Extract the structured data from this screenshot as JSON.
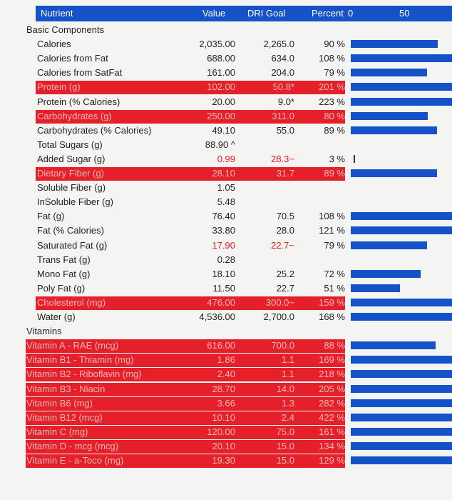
{
  "header": {
    "nutrient": "Nutrient",
    "value": "Value",
    "dri_goal": "DRI Goal",
    "percent": "Percent",
    "scale_0": "0",
    "scale_50": "50"
  },
  "colors": {
    "header_blue": "#1552c8",
    "highlight_red": "#e5202a",
    "bar_blue": "#1552c8"
  },
  "rows": [
    {
      "name": "Basic Components",
      "value": "",
      "dri": "",
      "pct": "",
      "style": "section",
      "bar": 0
    },
    {
      "name": "Calories",
      "value": "2,035.00",
      "dri": "2,265.0",
      "pct": "90 %",
      "style": "normal",
      "bar": 90
    },
    {
      "name": "Calories from Fat",
      "value": "688.00",
      "dri": "634.0",
      "pct": "108 %",
      "style": "normal",
      "bar": 108
    },
    {
      "name": "Calories from SatFat",
      "value": "161.00",
      "dri": "204.0",
      "pct": "79 %",
      "style": "normal",
      "bar": 79
    },
    {
      "name": "Protein (g)",
      "value": "102.00",
      "dri": "50.8*",
      "pct": "201 %",
      "style": "red",
      "bar": 201
    },
    {
      "name": "Protein (% Calories)",
      "value": "20.00",
      "dri": "9.0*",
      "pct": "223 %",
      "style": "normal",
      "bar": 223
    },
    {
      "name": "Carbohydrates (g)",
      "value": "250.00",
      "dri": "311.0",
      "pct": "80 %",
      "style": "red",
      "bar": 80
    },
    {
      "name": "Carbohydrates (% Calories)",
      "value": "49.10",
      "dri": "55.0",
      "pct": "89 %",
      "style": "normal",
      "bar": 89
    },
    {
      "name": "Total Sugars (g)",
      "value": "88.90 ^",
      "dri": "",
      "pct": "",
      "style": "normal",
      "bar": 0
    },
    {
      "name": "Added Sugar (g)",
      "value": "0.99",
      "dri": "28.3~",
      "pct": "3 %",
      "style": "textred",
      "bar": 3
    },
    {
      "name": "Dietary Fiber (g)",
      "value": "28.10",
      "dri": "31.7",
      "pct": "89 %",
      "style": "red",
      "bar": 89
    },
    {
      "name": "Soluble Fiber (g)",
      "value": "1.05",
      "dri": "",
      "pct": "",
      "style": "normal",
      "bar": 0
    },
    {
      "name": "InSoluble Fiber (g)",
      "value": "5.48",
      "dri": "",
      "pct": "",
      "style": "normal",
      "bar": 0
    },
    {
      "name": "Fat (g)",
      "value": "76.40",
      "dri": "70.5",
      "pct": "108 %",
      "style": "normal",
      "bar": 108
    },
    {
      "name": "Fat (% Calories)",
      "value": "33.80",
      "dri": "28.0",
      "pct": "121 %",
      "style": "normal",
      "bar": 121
    },
    {
      "name": "Saturated Fat (g)",
      "value": "17.90",
      "dri": "22.7~",
      "pct": "79 %",
      "style": "textred",
      "bar": 79
    },
    {
      "name": "Trans Fat (g)",
      "value": "0.28",
      "dri": "",
      "pct": "",
      "style": "normal",
      "bar": 0
    },
    {
      "name": "Mono Fat (g)",
      "value": "18.10",
      "dri": "25.2",
      "pct": "72 %",
      "style": "normal",
      "bar": 72
    },
    {
      "name": "Poly Fat (g)",
      "value": "11.50",
      "dri": "22.7",
      "pct": "51 %",
      "style": "normal",
      "bar": 51
    },
    {
      "name": "Cholesterol (mg)",
      "value": "476.00",
      "dri": "300.0~",
      "pct": "159 %",
      "style": "red",
      "bar": 159
    },
    {
      "name": "Water (g)",
      "value": "4,536.00",
      "dri": "2,700.0",
      "pct": "168 %",
      "style": "normal",
      "bar": 168
    },
    {
      "name": "Vitamins",
      "value": "",
      "dri": "",
      "pct": "",
      "style": "vitsection",
      "bar": 0
    },
    {
      "name": "Vitamin A - RAE (mcg)",
      "value": "616.00",
      "dri": "700.0",
      "pct": "88 %",
      "style": "vitred",
      "bar": 88
    },
    {
      "name": "Vitamin B1 - Thiamin (mg)",
      "value": "1.86",
      "dri": "1.1",
      "pct": "169 %",
      "style": "vitred",
      "bar": 169
    },
    {
      "name": "Vitamin B2 - Riboflavin (mg)",
      "value": "2.40",
      "dri": "1.1",
      "pct": "218 %",
      "style": "vitred",
      "bar": 218
    },
    {
      "name": "Vitamin B3 - Niacin",
      "value": "28.70",
      "dri": "14.0",
      "pct": "205 %",
      "style": "vitred",
      "bar": 205
    },
    {
      "name": "Vitamin B6 (mg)",
      "value": "3.66",
      "dri": "1.3",
      "pct": "282 %",
      "style": "vitred",
      "bar": 282
    },
    {
      "name": "Vitamin B12 (mcg)",
      "value": "10.10",
      "dri": "2.4",
      "pct": "422 %",
      "style": "vitred",
      "bar": 422
    },
    {
      "name": "Vitamin C (mg)",
      "value": "120.00",
      "dri": "75.0",
      "pct": "161 %",
      "style": "vitred",
      "bar": 161
    },
    {
      "name": "Vitamin D - mcg (mcg)",
      "value": "20.10",
      "dri": "15.0",
      "pct": "134 %",
      "style": "vitred",
      "bar": 134
    },
    {
      "name": "Vitamin E - a-Toco (mg)",
      "value": "19.30",
      "dri": "15.0",
      "pct": "129 %",
      "style": "vitred",
      "bar": 129
    }
  ]
}
